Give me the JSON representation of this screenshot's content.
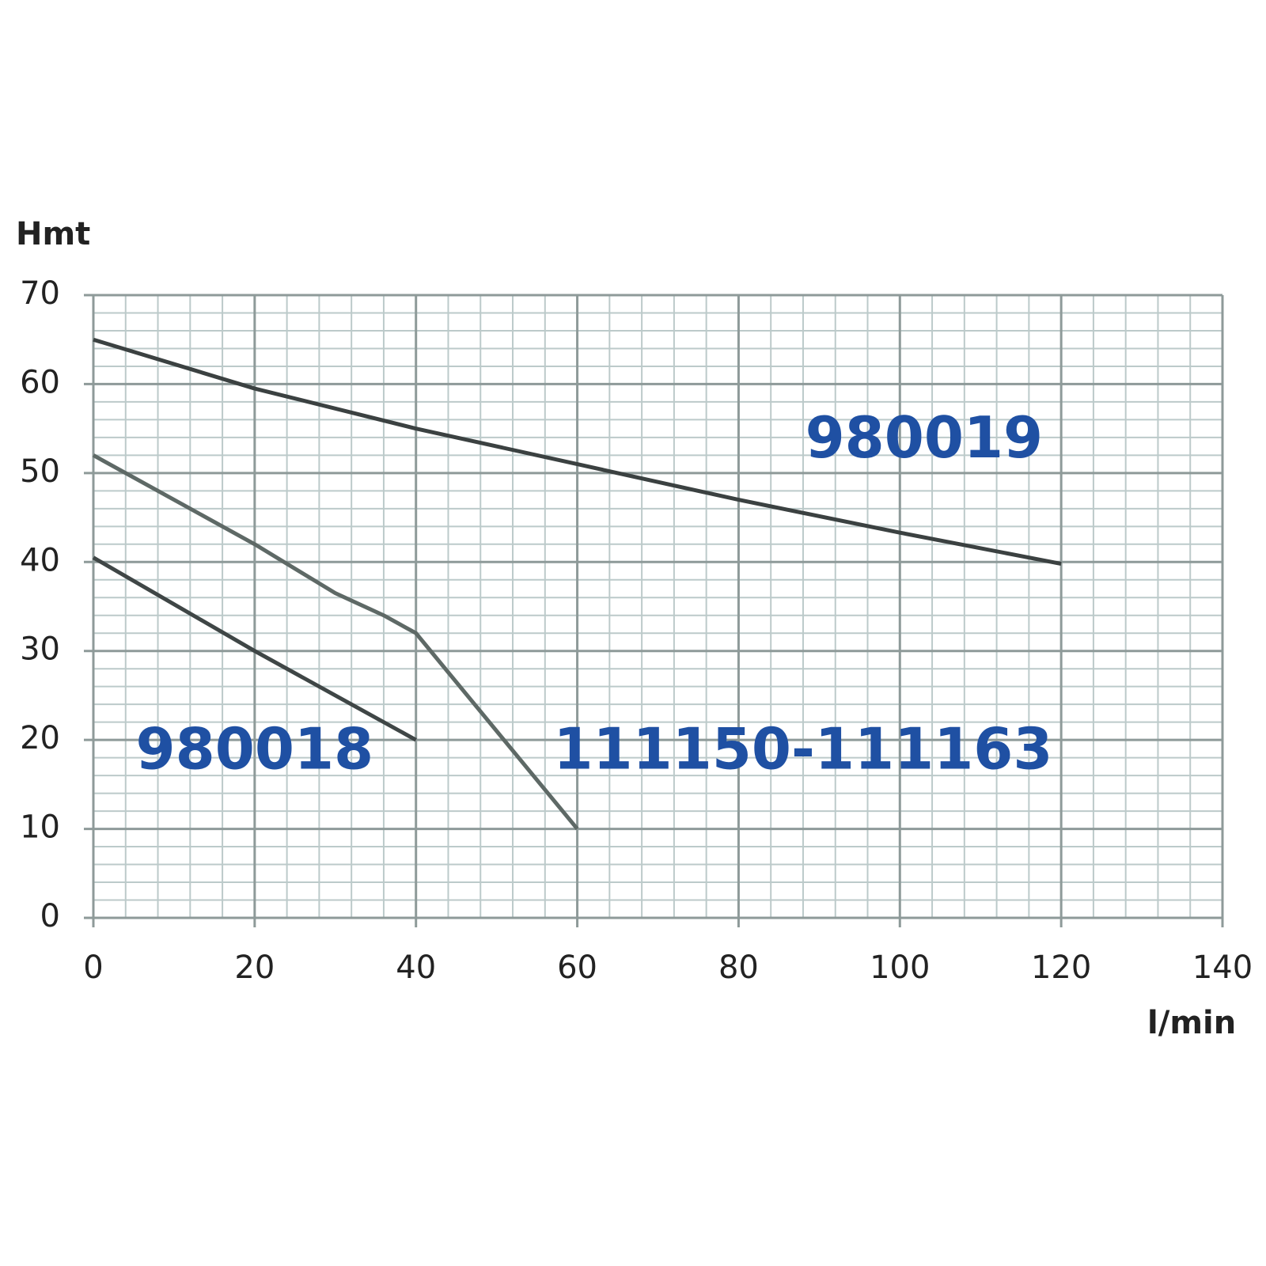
{
  "chart_data": {
    "type": "line",
    "y_label": "Hmt",
    "x_label": "l/min",
    "series": [
      {
        "name": "980019",
        "color": "#3b4141",
        "x": [
          0,
          20,
          40,
          60,
          80,
          100,
          120
        ],
        "values": [
          65,
          59.5,
          55,
          51,
          47,
          43.3,
          39.8
        ]
      },
      {
        "name": "111150-111163",
        "color": "#5e6966",
        "x": [
          0,
          20,
          30,
          36,
          40,
          50,
          60
        ],
        "values": [
          52,
          42,
          36.5,
          34,
          32,
          21,
          10
        ]
      },
      {
        "name": "980018",
        "color": "#3f4646",
        "x": [
          0,
          20,
          40
        ],
        "values": [
          40.5,
          30,
          20
        ]
      }
    ],
    "label_color": "#1f50a3",
    "xlim": [
      0,
      140
    ],
    "xticks": [
      0,
      20,
      40,
      60,
      80,
      100,
      120,
      140
    ],
    "ylim": [
      0,
      70
    ],
    "yticks": [
      0,
      10,
      20,
      30,
      40,
      50,
      60,
      70
    ],
    "grid": true,
    "minor_grid": 5
  }
}
